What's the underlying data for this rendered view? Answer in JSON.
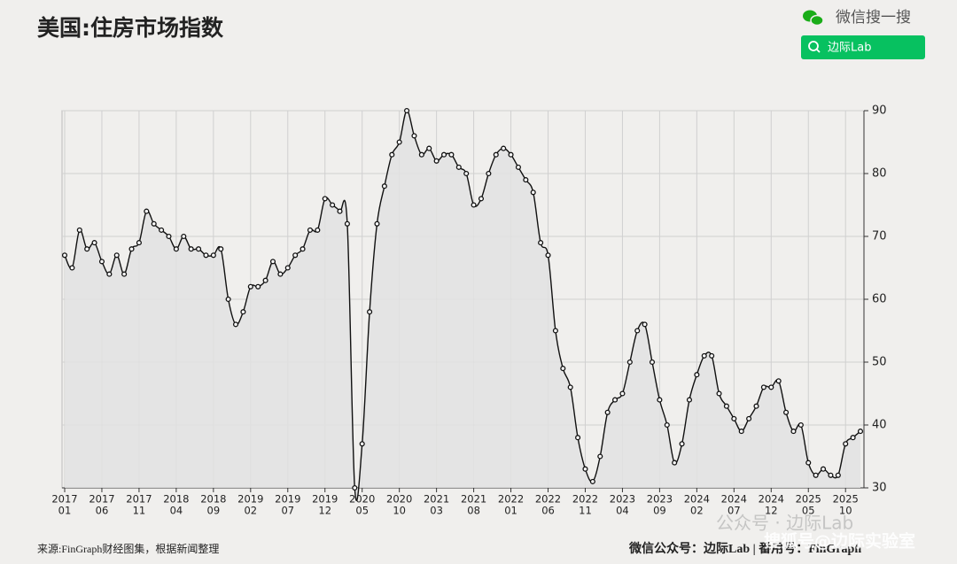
{
  "page": {
    "brand": "微信搜一搜",
    "search_label": "边际Lab",
    "source": "来源:FinGraph财经图集，根据新闻整理",
    "footer": "微信公众号：边际Lab | 番用号：FinGraph",
    "watermark": "公众号 · 边际Lab",
    "watermark2": "搜狐号@边际实验室"
  },
  "chart_data": {
    "type": "area-line",
    "title": "美国:住房市场指数",
    "categories": [
      [
        "2017",
        "01"
      ],
      null,
      null,
      null,
      null,
      [
        "2017",
        "06"
      ],
      null,
      null,
      null,
      null,
      [
        "2017",
        "11"
      ],
      null,
      null,
      null,
      null,
      [
        "2018",
        "04"
      ],
      null,
      null,
      null,
      null,
      [
        "2018",
        "09"
      ],
      null,
      null,
      null,
      null,
      [
        "2019",
        "02"
      ],
      null,
      null,
      null,
      null,
      [
        "2019",
        "07"
      ],
      null,
      null,
      null,
      null,
      [
        "2019",
        "12"
      ],
      null,
      null,
      null,
      null,
      [
        "2020",
        "05"
      ],
      null,
      null,
      null,
      null,
      [
        "2020",
        "10"
      ],
      null,
      null,
      null,
      null,
      [
        "2021",
        "03"
      ],
      null,
      null,
      null,
      null,
      [
        "2021",
        "08"
      ],
      null,
      null,
      null,
      null,
      [
        "2022",
        "01"
      ],
      null,
      null,
      null,
      null,
      [
        "2022",
        "06"
      ],
      null,
      null,
      null,
      null,
      [
        "2022",
        "11"
      ],
      null,
      null,
      null,
      null,
      [
        "2023",
        "04"
      ],
      null,
      null,
      null,
      null,
      [
        "2023",
        "09"
      ],
      null,
      null,
      null,
      null,
      [
        "2024",
        "02"
      ],
      null,
      null,
      null,
      null,
      [
        "2024",
        "07"
      ],
      null,
      null,
      null,
      null,
      [
        "2024",
        "12"
      ],
      null,
      null,
      null,
      null,
      [
        "2025",
        "05"
      ],
      null,
      null,
      null,
      null,
      [
        "2025",
        "10"
      ],
      null,
      null
    ],
    "values": [
      67,
      65,
      71,
      68,
      69,
      66,
      64,
      67,
      64,
      68,
      69,
      74,
      72,
      71,
      70,
      68,
      70,
      68,
      68,
      67,
      67,
      68,
      60,
      56,
      58,
      62,
      62,
      63,
      66,
      64,
      65,
      67,
      68,
      71,
      71,
      76,
      75,
      74,
      72,
      30,
      37,
      58,
      72,
      78,
      83,
      85,
      90,
      86,
      83,
      84,
      82,
      83,
      83,
      81,
      80,
      75,
      76,
      80,
      83,
      84,
      83,
      81,
      79,
      77,
      69,
      67,
      55,
      49,
      46,
      38,
      33,
      31,
      35,
      42,
      44,
      45,
      50,
      55,
      56,
      50,
      44,
      40,
      34,
      37,
      44,
      48,
      51,
      51,
      45,
      43,
      41,
      39,
      41,
      43,
      46,
      46,
      47,
      42,
      39,
      40,
      34,
      32,
      33,
      32,
      32,
      37,
      38,
      39
    ],
    "color": "#111111",
    "fill": "#e2e2e2",
    "ylim": [
      30,
      90
    ],
    "yticks": [
      30,
      40,
      50,
      60,
      70,
      80,
      90
    ],
    "grid": true,
    "y_axis_side": "right"
  }
}
